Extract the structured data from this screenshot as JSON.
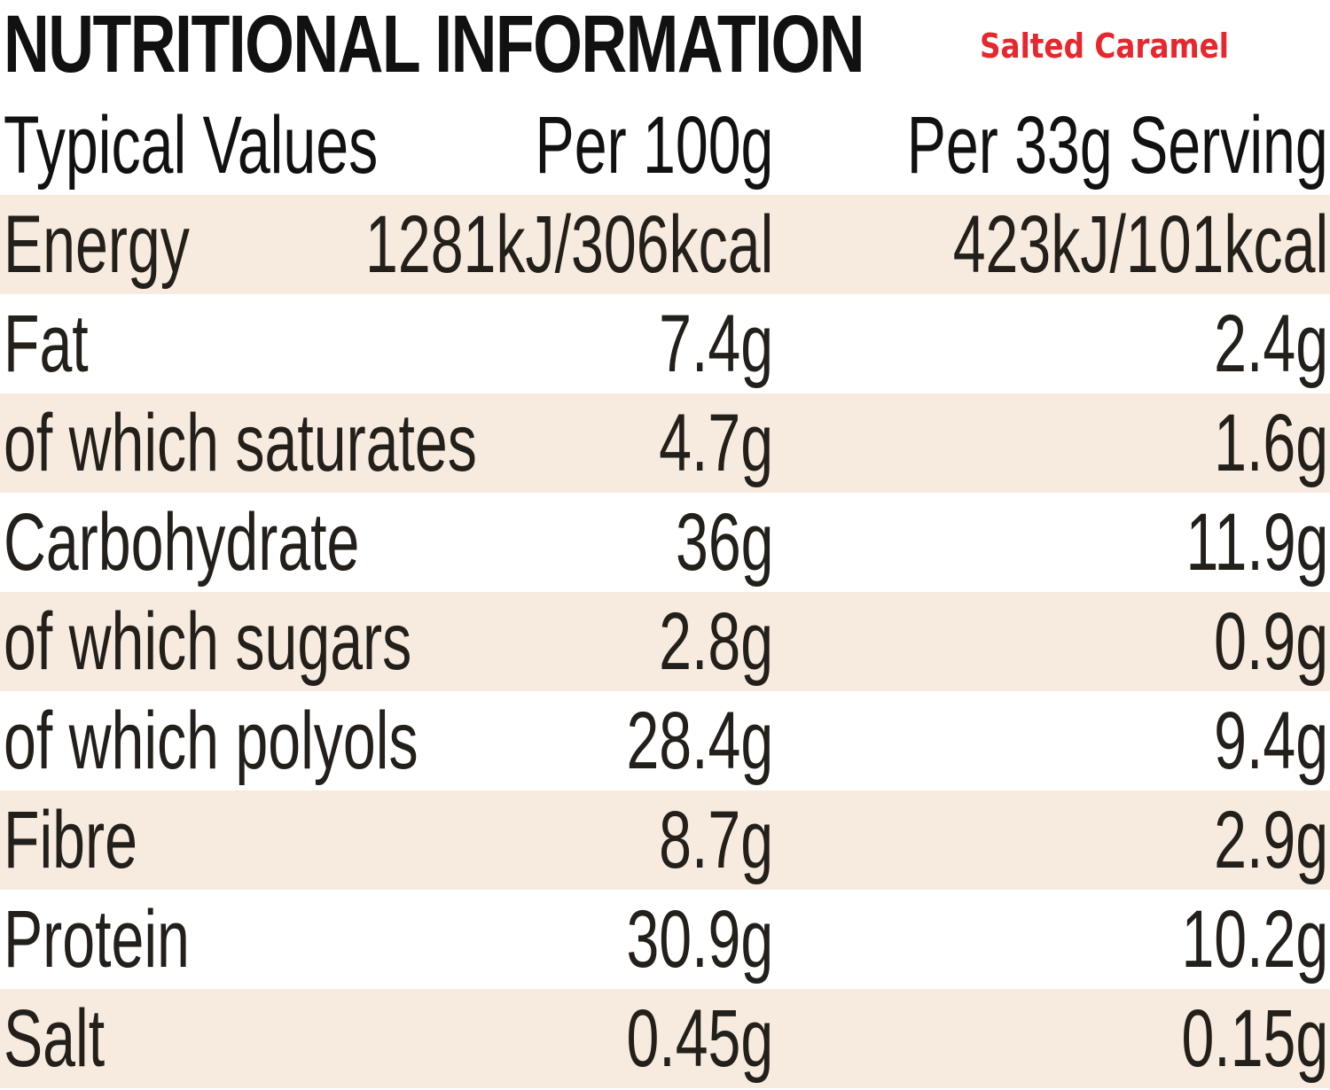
{
  "header": {
    "title": "NUTRITIONAL INFORMATION",
    "flavour": "Salted Caramel"
  },
  "table": {
    "columns": [
      "Typical Values",
      "Per 100g",
      "Per 33g Serving"
    ],
    "rows": [
      {
        "label": "Energy",
        "per100g": "1281kJ/306kcal",
        "perServing": "423kJ/101kcal"
      },
      {
        "label": "Fat",
        "per100g": "7.4g",
        "perServing": "2.4g"
      },
      {
        "label": "of which saturates",
        "per100g": "4.7g",
        "perServing": "1.6g"
      },
      {
        "label": "Carbohydrate",
        "per100g": "36g",
        "perServing": "11.9g"
      },
      {
        "label": "of which sugars",
        "per100g": "2.8g",
        "perServing": "0.9g"
      },
      {
        "label": "of which polyols",
        "per100g": "28.4g",
        "perServing": "9.4g"
      },
      {
        "label": "Fibre",
        "per100g": "8.7g",
        "perServing": "2.9g"
      },
      {
        "label": "Protein",
        "per100g": "30.9g",
        "perServing": "10.2g"
      },
      {
        "label": "Salt",
        "per100g": "0.45g",
        "perServing": "0.15g"
      }
    ]
  },
  "colors": {
    "flavour_text": "#e8262d",
    "row_shade": "#f7ebdf",
    "text": "#231f1a"
  }
}
